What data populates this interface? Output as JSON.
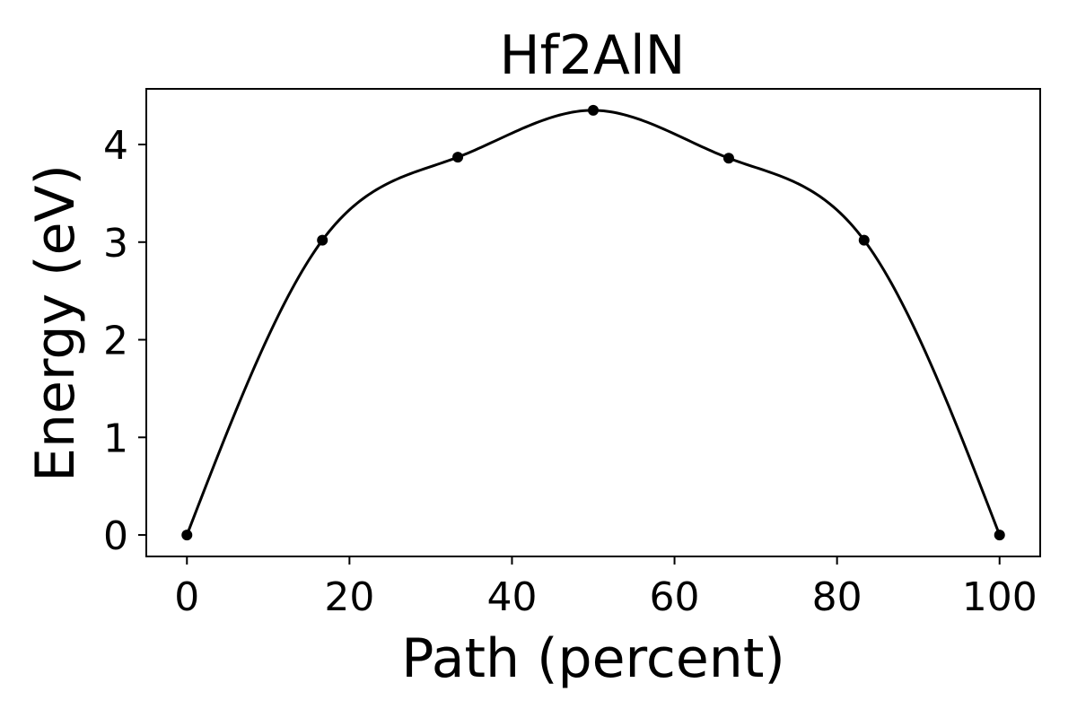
{
  "chart_data": {
    "type": "line",
    "title": "Hf2AlN",
    "xlabel": "Path (percent)",
    "ylabel": "Energy (eV)",
    "xlim": [
      -5,
      105
    ],
    "ylim": [
      -0.22,
      4.57
    ],
    "xticks": [
      0,
      20,
      40,
      60,
      80,
      100
    ],
    "yticks": [
      0,
      1,
      2,
      3,
      4
    ],
    "grid": false,
    "legend": "none",
    "colors": {
      "line": "#000000",
      "marker": "#000000"
    },
    "points": {
      "x": [
        0,
        16.67,
        33.33,
        50,
        66.67,
        83.33,
        100
      ],
      "y": [
        0.0,
        3.02,
        3.87,
        4.35,
        3.86,
        3.02,
        0.0
      ]
    }
  }
}
